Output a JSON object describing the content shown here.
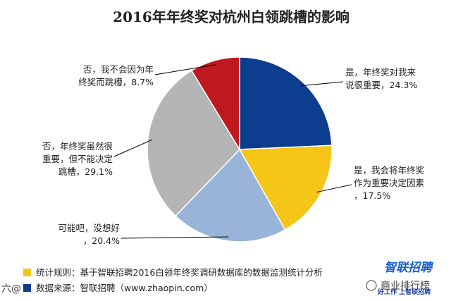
{
  "chart_data": {
    "type": "pie",
    "title": "2016年年终奖对杭州白领跳槽的影响",
    "slices": [
      {
        "label_lines": [
          "是，年终奖对我来",
          "说很重要，24.3%"
        ],
        "value": 24.3,
        "color": "#0d3d8f"
      },
      {
        "label_lines": [
          "是，我会将年终奖",
          "作为重要决定因素",
          "，17.5%"
        ],
        "value": 17.5,
        "color": "#f5c518"
      },
      {
        "label_lines": [
          "可能吧，没想好",
          "，20.4%"
        ],
        "value": 20.4,
        "color": "#98b4d9"
      },
      {
        "label_lines": [
          "否，年终奖虽然很",
          "重要，但不能决定",
          "跳槽，29.1%"
        ],
        "value": 29.1,
        "color": "#b5b5b5"
      },
      {
        "label_lines": [
          "否，我不会因为年",
          "终奖而跳槽，8.7%"
        ],
        "value": 8.7,
        "color": "#c0181f"
      }
    ]
  },
  "footer": {
    "method": "统计规则：基于智联招聘2016白领年终奖调研数据库的数据监测统计分析",
    "source": "数据来源：智联招聘（www.zhaopin.com）",
    "method_color": "#f5c518",
    "source_color": "#0d3d8f"
  },
  "watermarks": {
    "left": "六@",
    "right": "商业排行榜"
  },
  "logo": {
    "name": "智联招聘",
    "slogan": "好工作 上智联招聘"
  }
}
